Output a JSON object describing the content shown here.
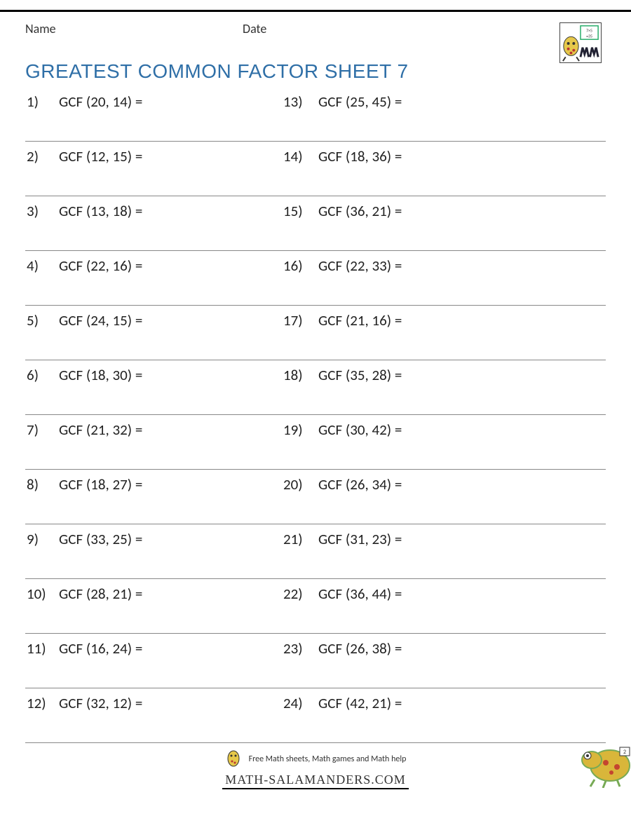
{
  "header": {
    "name_label": "Name",
    "date_label": "Date"
  },
  "title": "GREATEST COMMON FACTOR SHEET 7",
  "title_color": "#2f6fa7",
  "row_border_color": "#888888",
  "text_color": "#222222",
  "background_color": "#ffffff",
  "problems_left": [
    {
      "n": "1)",
      "q": "GCF (20, 14) ="
    },
    {
      "n": "2)",
      "q": "GCF (12, 15) ="
    },
    {
      "n": "3)",
      "q": "GCF (13, 18) ="
    },
    {
      "n": "4)",
      "q": "GCF (22, 16) ="
    },
    {
      "n": "5)",
      "q": "GCF (24, 15) ="
    },
    {
      "n": "6)",
      "q": "GCF (18, 30) ="
    },
    {
      "n": "7)",
      "q": "GCF (21, 32) ="
    },
    {
      "n": "8)",
      "q": "GCF (18, 27) ="
    },
    {
      "n": "9)",
      "q": "GCF (33, 25) ="
    },
    {
      "n": "10)",
      "q": "GCF (28, 21) ="
    },
    {
      "n": "11)",
      "q": "GCF (16, 24) ="
    },
    {
      "n": "12)",
      "q": "GCF (32, 12) ="
    }
  ],
  "problems_right": [
    {
      "n": "13)",
      "q": "GCF (25, 45) ="
    },
    {
      "n": "14)",
      "q": "GCF (18, 36) ="
    },
    {
      "n": "15)",
      "q": "GCF (36, 21) ="
    },
    {
      "n": "16)",
      "q": "GCF (22, 33) ="
    },
    {
      "n": "17)",
      "q": "GCF (21, 16) ="
    },
    {
      "n": "18)",
      "q": "GCF (35, 28) ="
    },
    {
      "n": "19)",
      "q": "GCF (30, 42) ="
    },
    {
      "n": "20)",
      "q": "GCF (26, 34) ="
    },
    {
      "n": "21)",
      "q": "GCF (31, 23) ="
    },
    {
      "n": "22)",
      "q": "GCF (36, 44) ="
    },
    {
      "n": "23)",
      "q": "GCF (26, 38) ="
    },
    {
      "n": "24)",
      "q": "GCF (42, 21) ="
    }
  ],
  "footer": {
    "tagline": "Free Math sheets, Math games and Math help",
    "site": "MATH-SALAMANDERS.COM"
  },
  "icons": {
    "logo": "salamander-logo-icon",
    "footer_logo": "salamander-small-icon",
    "corner": "salamander-corner-icon"
  }
}
